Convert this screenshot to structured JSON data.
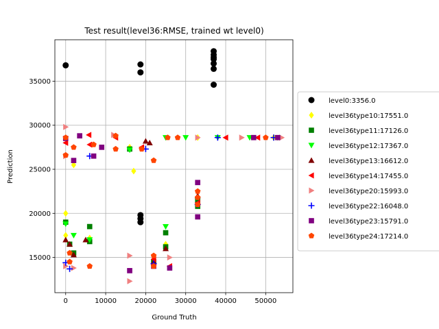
{
  "chart_data": {
    "type": "scatter",
    "title": "Test result(level36:RMSE, trained wt level0)",
    "xlabel": "Ground Truth",
    "ylabel": "Prediction",
    "xlim": [
      -2700,
      56800
    ],
    "ylim": [
      11000,
      39700
    ],
    "xticks": [
      0,
      10000,
      20000,
      30000,
      40000,
      50000
    ],
    "yticks": [
      15000,
      20000,
      25000,
      30000,
      35000
    ],
    "grid": true,
    "legend_position": "right-outside",
    "series": [
      {
        "name": "level0:3356.0",
        "color": "#000000",
        "marker": "circle",
        "points": [
          [
            0,
            36800
          ],
          [
            18700,
            36000
          ],
          [
            18700,
            36900
          ],
          [
            18700,
            19800
          ],
          [
            18700,
            19400
          ],
          [
            18700,
            19000
          ],
          [
            37000,
            34600
          ],
          [
            37000,
            36400
          ],
          [
            37000,
            37000
          ],
          [
            37000,
            37500
          ],
          [
            37000,
            38000
          ],
          [
            37000,
            38400
          ],
          [
            37000,
            37700
          ]
        ]
      },
      {
        "name": "level36type10:17551.0",
        "color": "#ffff00",
        "marker": "diamond",
        "points": [
          [
            0,
            20000
          ],
          [
            0,
            19000
          ],
          [
            0,
            17500
          ],
          [
            2000,
            25500
          ],
          [
            6000,
            17200
          ],
          [
            17000,
            24800
          ],
          [
            16000,
            27500
          ],
          [
            25000,
            16500
          ],
          [
            33000,
            28600
          ],
          [
            52000,
            28600
          ]
        ]
      },
      {
        "name": "level36type11:17126.0",
        "color": "#008000",
        "marker": "square",
        "points": [
          [
            0,
            19000
          ],
          [
            1000,
            16500
          ],
          [
            2000,
            15500
          ],
          [
            6000,
            18500
          ],
          [
            6000,
            16800
          ],
          [
            16000,
            27300
          ],
          [
            22000,
            14500
          ],
          [
            25000,
            17800
          ],
          [
            25000,
            16200
          ],
          [
            33000,
            21500
          ],
          [
            33000,
            20800
          ]
        ]
      },
      {
        "name": "level36type12:17367.0",
        "color": "#00ff00",
        "marker": "triangle-down",
        "points": [
          [
            0,
            18800
          ],
          [
            2000,
            17500
          ],
          [
            6000,
            17000
          ],
          [
            16000,
            27200
          ],
          [
            25000,
            18500
          ],
          [
            25000,
            28600
          ],
          [
            30000,
            28600
          ],
          [
            38000,
            28600
          ],
          [
            46000,
            28600
          ],
          [
            53000,
            28600
          ]
        ]
      },
      {
        "name": "level36type13:16612.0",
        "color": "#800000",
        "marker": "triangle-up",
        "points": [
          [
            0,
            17000
          ],
          [
            1000,
            16500
          ],
          [
            2000,
            15300
          ],
          [
            5000,
            17000
          ],
          [
            20000,
            28200
          ],
          [
            21000,
            28000
          ],
          [
            22000,
            14500
          ],
          [
            25000,
            16000
          ],
          [
            33000,
            22000
          ]
        ]
      },
      {
        "name": "level36type14:17455.0",
        "color": "#ff0000",
        "marker": "triangle-left",
        "points": [
          [
            0,
            28000
          ],
          [
            5800,
            28900
          ],
          [
            6000,
            27800
          ],
          [
            12500,
            28600
          ],
          [
            19000,
            27500
          ],
          [
            22000,
            14800
          ],
          [
            26000,
            14000
          ],
          [
            33000,
            21200
          ],
          [
            40000,
            28600
          ],
          [
            48000,
            28600
          ]
        ]
      },
      {
        "name": "level36type20:15993.0",
        "color": "#f08080",
        "marker": "triangle-right",
        "points": [
          [
            0,
            29800
          ],
          [
            0,
            26500
          ],
          [
            0,
            14000
          ],
          [
            2000,
            13800
          ],
          [
            12000,
            28900
          ],
          [
            16000,
            15200
          ],
          [
            16000,
            12300
          ],
          [
            26000,
            15000
          ],
          [
            33000,
            28600
          ],
          [
            44000,
            28600
          ],
          [
            54000,
            28600
          ]
        ]
      },
      {
        "name": "level36type22:16048.0",
        "color": "#0000ff",
        "marker": "plus",
        "points": [
          [
            0,
            14400
          ],
          [
            1000,
            13700
          ],
          [
            6000,
            26500
          ],
          [
            20000,
            27300
          ],
          [
            22000,
            14300
          ],
          [
            33000,
            21000
          ],
          [
            38000,
            28600
          ],
          [
            52000,
            28600
          ]
        ]
      },
      {
        "name": "level36type23:15791.0",
        "color": "#800080",
        "marker": "square",
        "points": [
          [
            0,
            28500
          ],
          [
            2000,
            26000
          ],
          [
            3500,
            28800
          ],
          [
            7000,
            26500
          ],
          [
            9000,
            27500
          ],
          [
            16000,
            13500
          ],
          [
            22000,
            14000
          ],
          [
            26000,
            13800
          ],
          [
            33000,
            19600
          ],
          [
            33000,
            23500
          ],
          [
            47000,
            28600
          ],
          [
            53000,
            28600
          ]
        ]
      },
      {
        "name": "level36type24:17214.0",
        "color": "#ff4500",
        "marker": "pentagon",
        "points": [
          [
            0,
            28600
          ],
          [
            0,
            26600
          ],
          [
            1000,
            15500
          ],
          [
            1000,
            14500
          ],
          [
            2000,
            27500
          ],
          [
            6000,
            14000
          ],
          [
            7000,
            27800
          ],
          [
            12500,
            28800
          ],
          [
            12500,
            27300
          ],
          [
            19000,
            27300
          ],
          [
            22000,
            26000
          ],
          [
            22000,
            15200
          ],
          [
            22000,
            14000
          ],
          [
            25500,
            28600
          ],
          [
            28000,
            28600
          ],
          [
            33000,
            22500
          ],
          [
            33000,
            21800
          ],
          [
            33000,
            21000
          ],
          [
            50000,
            28600
          ]
        ]
      }
    ]
  }
}
